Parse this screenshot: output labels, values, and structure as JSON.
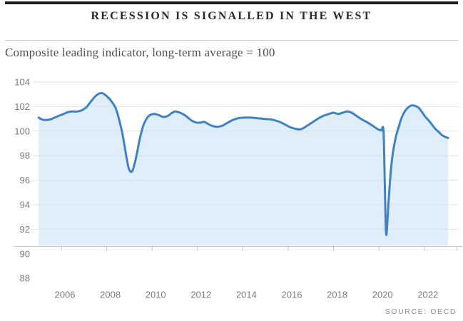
{
  "header": {
    "title": "RECESSION IS SIGNALLED IN THE WEST",
    "subtitle": "Composite leading indicator, long-term average = 100"
  },
  "footer": {
    "source": "SOURCE: OECD"
  },
  "colors": {
    "accent_bar": "#1c1c1c",
    "title_text": "#2a2a2a",
    "subtitle_text": "#4e4e4e",
    "line": "#3f82c4",
    "area_fill": "#cde4f6",
    "gridline": "#e2e2e2",
    "axis_line": "#c6c6c6",
    "axis_text": "#7b7b7b",
    "source_text": "#8d8d8d"
  },
  "chart_data": {
    "type": "area",
    "title": "RECESSION IS SIGNALLED IN THE WEST",
    "subtitle": "Composite leading indicator, long-term average = 100",
    "source": "SOURCE: OECD",
    "xlabel": "",
    "ylabel": "",
    "grid": "horizontal",
    "legend": "none",
    "ylim": [
      88,
      104
    ],
    "x_domain": [
      2005.0,
      2023.1
    ],
    "y_ticks": [
      104,
      102,
      100,
      98,
      96,
      94,
      92,
      90,
      88
    ],
    "x_ticks": [
      2006,
      2008,
      2010,
      2012,
      2014,
      2016,
      2018,
      2020,
      2022
    ],
    "long_term_average": 100,
    "key_points": {
      "pre_crisis_peak": {
        "year": 2007.8,
        "value": 103.1
      },
      "financial_crisis_trough": {
        "year": 2009.05,
        "value": 96.7
      },
      "covid_trough": {
        "year": 2020.3,
        "value": 91.5
      },
      "post_covid_peak": {
        "year": 2021.45,
        "value": 102.1
      },
      "latest": {
        "year": 2023.05,
        "value": 99.45
      }
    },
    "series": [
      {
        "name": "Composite leading indicator",
        "points": [
          [
            2005.0,
            101.1
          ],
          [
            2005.15,
            100.95
          ],
          [
            2005.3,
            100.9
          ],
          [
            2005.5,
            100.95
          ],
          [
            2005.7,
            101.1
          ],
          [
            2005.9,
            101.25
          ],
          [
            2006.1,
            101.4
          ],
          [
            2006.3,
            101.55
          ],
          [
            2006.5,
            101.6
          ],
          [
            2006.7,
            101.6
          ],
          [
            2006.9,
            101.7
          ],
          [
            2007.1,
            101.95
          ],
          [
            2007.3,
            102.4
          ],
          [
            2007.5,
            102.85
          ],
          [
            2007.65,
            103.05
          ],
          [
            2007.8,
            103.1
          ],
          [
            2008.0,
            102.85
          ],
          [
            2008.2,
            102.45
          ],
          [
            2008.4,
            101.85
          ],
          [
            2008.55,
            100.9
          ],
          [
            2008.7,
            99.7
          ],
          [
            2008.85,
            98.1
          ],
          [
            2008.95,
            97.1
          ],
          [
            2009.05,
            96.7
          ],
          [
            2009.15,
            96.85
          ],
          [
            2009.3,
            97.9
          ],
          [
            2009.45,
            99.3
          ],
          [
            2009.6,
            100.4
          ],
          [
            2009.75,
            101.0
          ],
          [
            2009.9,
            101.3
          ],
          [
            2010.1,
            101.4
          ],
          [
            2010.3,
            101.3
          ],
          [
            2010.5,
            101.15
          ],
          [
            2010.7,
            101.25
          ],
          [
            2010.85,
            101.45
          ],
          [
            2011.0,
            101.6
          ],
          [
            2011.15,
            101.55
          ],
          [
            2011.35,
            101.4
          ],
          [
            2011.55,
            101.15
          ],
          [
            2011.75,
            100.85
          ],
          [
            2011.95,
            100.7
          ],
          [
            2012.15,
            100.7
          ],
          [
            2012.3,
            100.75
          ],
          [
            2012.5,
            100.55
          ],
          [
            2012.7,
            100.4
          ],
          [
            2012.9,
            100.35
          ],
          [
            2013.1,
            100.45
          ],
          [
            2013.3,
            100.65
          ],
          [
            2013.55,
            100.9
          ],
          [
            2013.8,
            101.05
          ],
          [
            2014.05,
            101.1
          ],
          [
            2014.35,
            101.1
          ],
          [
            2014.65,
            101.05
          ],
          [
            2014.95,
            101.0
          ],
          [
            2015.25,
            100.95
          ],
          [
            2015.55,
            100.8
          ],
          [
            2015.8,
            100.6
          ],
          [
            2016.05,
            100.35
          ],
          [
            2016.3,
            100.2
          ],
          [
            2016.55,
            100.15
          ],
          [
            2016.8,
            100.4
          ],
          [
            2017.05,
            100.7
          ],
          [
            2017.3,
            101.0
          ],
          [
            2017.55,
            101.25
          ],
          [
            2017.8,
            101.4
          ],
          [
            2018.0,
            101.5
          ],
          [
            2018.2,
            101.4
          ],
          [
            2018.4,
            101.5
          ],
          [
            2018.6,
            101.6
          ],
          [
            2018.8,
            101.5
          ],
          [
            2019.0,
            101.25
          ],
          [
            2019.25,
            100.95
          ],
          [
            2019.5,
            100.7
          ],
          [
            2019.75,
            100.4
          ],
          [
            2019.95,
            100.15
          ],
          [
            2020.1,
            100.05
          ],
          [
            2020.2,
            100.0
          ],
          [
            2020.26,
            95.5
          ],
          [
            2020.32,
            91.55
          ],
          [
            2020.42,
            94.2
          ],
          [
            2020.52,
            96.7
          ],
          [
            2020.62,
            98.3
          ],
          [
            2020.74,
            99.5
          ],
          [
            2020.88,
            100.4
          ],
          [
            2021.0,
            101.1
          ],
          [
            2021.15,
            101.65
          ],
          [
            2021.3,
            101.95
          ],
          [
            2021.45,
            102.1
          ],
          [
            2021.6,
            102.05
          ],
          [
            2021.75,
            101.9
          ],
          [
            2021.9,
            101.55
          ],
          [
            2022.05,
            101.15
          ],
          [
            2022.2,
            100.85
          ],
          [
            2022.35,
            100.5
          ],
          [
            2022.5,
            100.15
          ],
          [
            2022.65,
            99.9
          ],
          [
            2022.8,
            99.65
          ],
          [
            2022.95,
            99.5
          ],
          [
            2023.05,
            99.45
          ]
        ]
      }
    ]
  }
}
